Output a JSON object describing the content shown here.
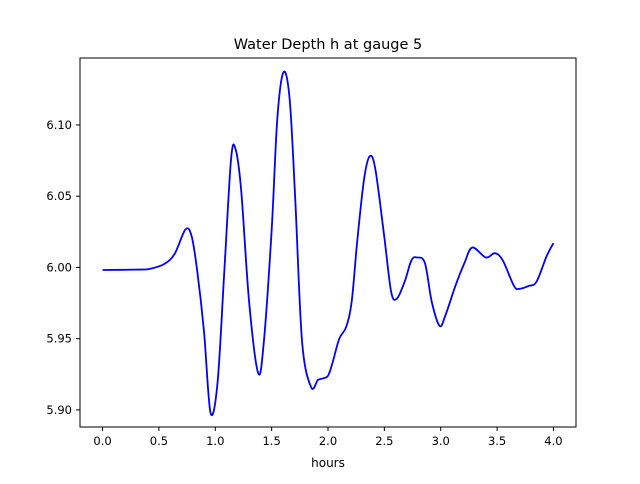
{
  "chart_data": {
    "type": "line",
    "title": "Water Depth h at gauge 5",
    "xlabel": "hours",
    "ylabel": "",
    "xlim": [
      -0.2,
      4.2
    ],
    "ylim": [
      5.888,
      6.147
    ],
    "xticks": [
      "0.0",
      "0.5",
      "1.0",
      "1.5",
      "2.0",
      "2.5",
      "3.0",
      "3.5",
      "4.0"
    ],
    "yticks": [
      "5.90",
      "5.95",
      "6.00",
      "6.05",
      "6.10"
    ],
    "grid": false,
    "series": [
      {
        "name": "h",
        "color": "#0000ff",
        "x": [
          0,
          0.33,
          0.42,
          0.55,
          0.64,
          0.736,
          0.79,
          0.84,
          0.9,
          0.958,
          1.02,
          1.08,
          1.14,
          1.18,
          1.23,
          1.3,
          1.38,
          1.43,
          1.5,
          1.55,
          1.605,
          1.66,
          1.71,
          1.77,
          1.85,
          1.91,
          1.95,
          2.0,
          2.04,
          2.1,
          2.16,
          2.21,
          2.26,
          2.32,
          2.37,
          2.42,
          2.5,
          2.56,
          2.61,
          2.68,
          2.74,
          2.79,
          2.86,
          2.92,
          2.99,
          3.04,
          3.13,
          3.21,
          3.28,
          3.4,
          3.48,
          3.55,
          3.65,
          3.7,
          3.78,
          3.85,
          3.94,
          4.0
        ],
        "y": [
          5.9982,
          5.9985,
          5.999,
          6.0025,
          6.0096,
          6.0267,
          6.022,
          5.9975,
          5.955,
          5.898,
          5.919,
          5.997,
          6.076,
          6.083,
          6.054,
          5.976,
          5.926,
          5.947,
          6.026,
          6.104,
          6.137,
          6.118,
          6.047,
          5.948,
          5.916,
          5.921,
          5.922,
          5.924,
          5.933,
          5.95,
          5.958,
          5.976,
          6.019,
          6.062,
          6.078,
          6.069,
          6.021,
          5.983,
          5.978,
          5.99,
          6.005,
          6.007,
          6.003,
          5.976,
          5.959,
          5.966,
          5.987,
          6.003,
          6.014,
          6.007,
          6.01,
          6.005,
          5.987,
          5.985,
          5.987,
          5.99,
          6.008,
          6.017
        ]
      }
    ]
  }
}
